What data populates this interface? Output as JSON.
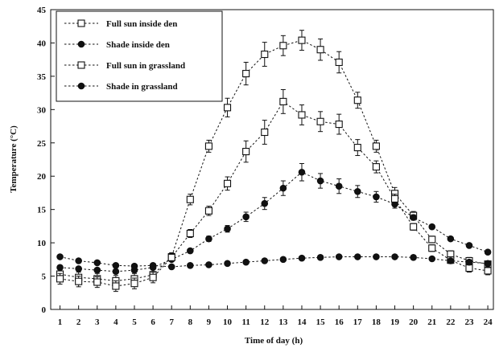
{
  "chart_data": {
    "type": "line",
    "title": "",
    "xlabel": "Time of day (h)",
    "ylabel": "Temperature (°C)",
    "xlim": [
      0.5,
      24.3
    ],
    "ylim": [
      0,
      45
    ],
    "x": [
      1,
      2,
      3,
      4,
      5,
      6,
      7,
      8,
      9,
      10,
      11,
      12,
      13,
      14,
      15,
      16,
      17,
      18,
      19,
      20,
      21,
      22,
      23,
      24
    ],
    "x_tick_labels": [
      "1",
      "2",
      "3",
      "4",
      "5",
      "6",
      "7",
      "8",
      "9",
      "10",
      "11",
      "12",
      "13",
      "14",
      "15",
      "16",
      "17",
      "18",
      "19",
      "20",
      "21",
      "22",
      "23",
      "24"
    ],
    "y_ticks": [
      0,
      5,
      10,
      15,
      20,
      25,
      30,
      35,
      40,
      45
    ],
    "y_tick_labels": [
      "0",
      "5",
      "10",
      "15",
      "20",
      "25",
      "30",
      "35",
      "40",
      "45"
    ],
    "legend_position": "top-left",
    "grid": false,
    "series": [
      {
        "name": "Full sun inside den",
        "marker": "open-square",
        "values": [
          5.3,
          4.8,
          4.6,
          4.3,
          4.6,
          5.2,
          7.9,
          16.5,
          24.5,
          30.3,
          35.4,
          38.3,
          39.6,
          40.4,
          39.0,
          37.1,
          31.4,
          24.5,
          17.4,
          14.1,
          10.5,
          8.3,
          7.3,
          6.8
        ],
        "errors": [
          0.8,
          0.8,
          0.8,
          0.8,
          0.8,
          0.8,
          0.6,
          0.8,
          0.9,
          1.4,
          1.7,
          1.8,
          1.5,
          1.5,
          1.6,
          1.6,
          1.2,
          0.9,
          0.9,
          0.6,
          0.5,
          0.5,
          0.5,
          0.4
        ]
      },
      {
        "name": "Shade inside den",
        "marker": "filled-circle",
        "values": [
          6.3,
          6.1,
          5.9,
          5.7,
          5.9,
          6.3,
          7.5,
          8.8,
          10.6,
          12.1,
          13.9,
          15.9,
          18.2,
          20.6,
          19.3,
          18.5,
          17.7,
          16.9,
          15.8,
          13.8,
          12.4,
          10.6,
          9.6,
          8.6
        ],
        "errors": [
          0.3,
          0.3,
          0.3,
          0.3,
          0.3,
          0.3,
          0.3,
          0.3,
          0.4,
          0.5,
          0.7,
          0.9,
          1.1,
          1.3,
          1.1,
          1.1,
          0.9,
          0.8,
          0.6,
          0.4,
          0.3,
          0.3,
          0.3,
          0.3
        ]
      },
      {
        "name": "Full sun in grassland",
        "marker": "open-square",
        "values": [
          4.6,
          4.2,
          4.1,
          3.5,
          3.9,
          4.8,
          7.8,
          11.4,
          14.8,
          18.9,
          23.7,
          26.6,
          31.2,
          29.2,
          28.2,
          27.8,
          24.3,
          21.4,
          16.6,
          12.4,
          9.2,
          7.4,
          6.2,
          5.8
        ],
        "errors": [
          0.8,
          0.8,
          0.8,
          0.8,
          0.8,
          0.8,
          0.6,
          0.6,
          0.7,
          1.0,
          1.6,
          1.8,
          1.8,
          1.5,
          1.5,
          1.5,
          1.2,
          0.9,
          0.7,
          0.5,
          0.5,
          0.5,
          0.6,
          0.6
        ]
      },
      {
        "name": "Shade in grassland",
        "marker": "filled-circle",
        "values": [
          7.9,
          7.3,
          7.0,
          6.6,
          6.5,
          6.6,
          6.4,
          6.6,
          6.7,
          6.9,
          7.1,
          7.3,
          7.5,
          7.7,
          7.8,
          7.9,
          7.9,
          7.9,
          7.9,
          7.8,
          7.6,
          7.3,
          7.1,
          6.9
        ],
        "errors": [
          0.2,
          0.2,
          0.2,
          0.2,
          0.2,
          0.2,
          0.2,
          0.2,
          0.2,
          0.2,
          0.2,
          0.2,
          0.2,
          0.2,
          0.2,
          0.2,
          0.2,
          0.2,
          0.2,
          0.2,
          0.2,
          0.2,
          0.2,
          0.2
        ]
      }
    ]
  }
}
